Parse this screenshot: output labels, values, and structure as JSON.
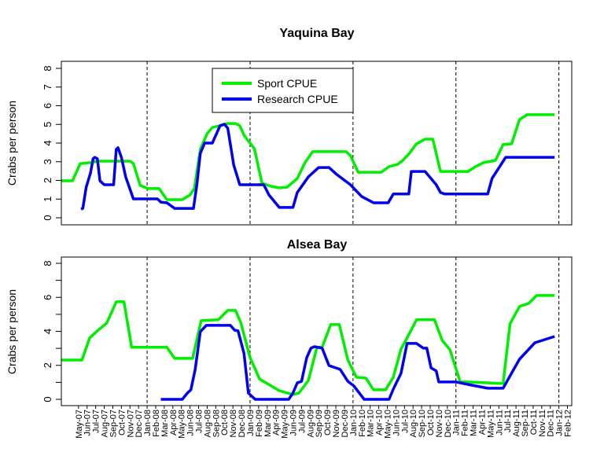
{
  "colors": {
    "sport": "#00ee00",
    "research": "#0000ee"
  },
  "chart_data": [
    {
      "type": "line",
      "title": "Yaquina Bay",
      "xlabel": "",
      "ylabel": "Crabs per person",
      "ylim": [
        0,
        8
      ],
      "yticks": [
        0,
        1,
        2,
        3,
        4,
        5,
        6,
        7,
        8
      ],
      "ytick_labels": [
        "0",
        "1",
        "2",
        "3",
        "4",
        "5",
        "6",
        "7",
        "8"
      ],
      "x_unit": "months since May-07",
      "xlim": [
        -2,
        57.5
      ],
      "vlines_at_months": [
        8,
        20,
        32,
        44,
        56
      ],
      "legend": {
        "placement": "top-center",
        "entries": [
          "Sport CPUE",
          "Research CPUE"
        ]
      },
      "series": [
        {
          "name": "Sport CPUE",
          "color_key": "sport",
          "points": [
            [
              -2,
              1.98
            ],
            [
              -0.7,
              1.98
            ],
            [
              0.2,
              2.9
            ],
            [
              1.4,
              2.95
            ],
            [
              2.3,
              3.03
            ],
            [
              6.0,
              3.03
            ],
            [
              6.4,
              2.9
            ],
            [
              7.2,
              1.73
            ],
            [
              8.1,
              1.56
            ],
            [
              9.4,
              1.56
            ],
            [
              10.3,
              0.97
            ],
            [
              12.1,
              0.97
            ],
            [
              13.0,
              1.22
            ],
            [
              13.5,
              1.56
            ],
            [
              14.2,
              3.66
            ],
            [
              15.0,
              4.51
            ],
            [
              15.6,
              4.84
            ],
            [
              16.5,
              4.93
            ],
            [
              17.4,
              5.05
            ],
            [
              18.3,
              5.05
            ],
            [
              18.8,
              4.93
            ],
            [
              19.3,
              4.42
            ],
            [
              19.7,
              4.17
            ],
            [
              20.5,
              3.7
            ],
            [
              21.4,
              1.85
            ],
            [
              22.5,
              1.68
            ],
            [
              23.4,
              1.6
            ],
            [
              24.3,
              1.64
            ],
            [
              25.5,
              2.1
            ],
            [
              26.4,
              2.95
            ],
            [
              27.3,
              3.54
            ],
            [
              28.4,
              3.54
            ],
            [
              31.2,
              3.54
            ],
            [
              31.7,
              3.33
            ],
            [
              32.6,
              2.44
            ],
            [
              35.3,
              2.44
            ],
            [
              36.2,
              2.74
            ],
            [
              37.2,
              2.86
            ],
            [
              37.8,
              3.07
            ],
            [
              38.5,
              3.41
            ],
            [
              39.4,
              3.96
            ],
            [
              40.4,
              4.21
            ],
            [
              41.3,
              4.21
            ],
            [
              42.2,
              2.48
            ],
            [
              45.4,
              2.48
            ],
            [
              46.3,
              2.74
            ],
            [
              47.2,
              2.95
            ],
            [
              48.6,
              3.07
            ],
            [
              49.5,
              3.92
            ],
            [
              50.5,
              3.96
            ],
            [
              51.4,
              5.26
            ],
            [
              52.3,
              5.52
            ],
            [
              55.5,
              5.52
            ]
          ]
        },
        {
          "name": "Research CPUE",
          "color_key": "research",
          "points": [
            [
              0.3,
              0.46
            ],
            [
              0.5,
              0.5
            ],
            [
              0.9,
              1.64
            ],
            [
              1.4,
              2.4
            ],
            [
              1.7,
              3.16
            ],
            [
              1.9,
              3.24
            ],
            [
              2.2,
              3.16
            ],
            [
              2.5,
              1.98
            ],
            [
              3.0,
              1.77
            ],
            [
              4.1,
              1.77
            ],
            [
              4.4,
              3.66
            ],
            [
              4.6,
              3.75
            ],
            [
              5.0,
              3.24
            ],
            [
              5.5,
              2.19
            ],
            [
              6.4,
              1.01
            ],
            [
              9.2,
              1.01
            ],
            [
              9.6,
              0.84
            ],
            [
              10.3,
              0.8
            ],
            [
              11.2,
              0.5
            ],
            [
              13.4,
              0.5
            ],
            [
              13.8,
              1.77
            ],
            [
              14.2,
              3.45
            ],
            [
              14.7,
              4.0
            ],
            [
              15.6,
              4.0
            ],
            [
              16.5,
              4.93
            ],
            [
              17.0,
              5.01
            ],
            [
              17.4,
              4.8
            ],
            [
              18.1,
              2.82
            ],
            [
              18.8,
              1.77
            ],
            [
              21.6,
              1.77
            ],
            [
              22.2,
              1.22
            ],
            [
              23.4,
              0.55
            ],
            [
              25.0,
              0.55
            ],
            [
              25.5,
              1.35
            ],
            [
              26.8,
              2.19
            ],
            [
              28.0,
              2.69
            ],
            [
              29.2,
              2.69
            ],
            [
              30.1,
              2.32
            ],
            [
              31.7,
              1.77
            ],
            [
              33.0,
              1.14
            ],
            [
              34.4,
              0.8
            ],
            [
              36.1,
              0.8
            ],
            [
              36.7,
              1.27
            ],
            [
              38.5,
              1.27
            ],
            [
              38.8,
              2.48
            ],
            [
              40.4,
              2.48
            ],
            [
              41.7,
              1.77
            ],
            [
              42.2,
              1.35
            ],
            [
              42.7,
              1.27
            ],
            [
              47.7,
              1.27
            ],
            [
              48.2,
              2.1
            ],
            [
              49.8,
              3.24
            ],
            [
              55.5,
              3.24
            ]
          ]
        }
      ]
    },
    {
      "type": "line",
      "title": "Alsea Bay",
      "xlabel": "",
      "ylabel": "Crabs per person",
      "ylim": [
        0,
        8
      ],
      "yticks": [
        0,
        1,
        2,
        3,
        4,
        5,
        6,
        7,
        8
      ],
      "ytick_labels": [
        "0",
        "",
        "2",
        "",
        "4",
        "",
        "6",
        "",
        "8"
      ],
      "x_unit": "months since May-07",
      "xlim": [
        -2,
        57.5
      ],
      "vlines_at_months": [
        8,
        20,
        32,
        44,
        56
      ],
      "xtick_labels": [
        "May-07",
        "Jun-07",
        "Jul-07",
        "Aug-07",
        "Sep-07",
        "Oct-07",
        "Nov-07",
        "Dec-07",
        "Jan-08",
        "Feb-08",
        "Mar-08",
        "Apr-08",
        "May-08",
        "Jun-08",
        "Jul-08",
        "Aug-08",
        "Sep-08",
        "Oct-08",
        "Nov-08",
        "Dec-08",
        "Jan-09",
        "Feb-09",
        "Mar-09",
        "Apr-09",
        "May-09",
        "Jun-09",
        "Jul-09",
        "Aug-09",
        "Sep-09",
        "Oct-09",
        "Nov-09",
        "Dec-09",
        "Jan-10",
        "Feb-10",
        "Mar-10",
        "Apr-10",
        "May-10",
        "Jun-10",
        "Jul-10",
        "Aug-10",
        "Sep-10",
        "Oct-10",
        "Nov-10",
        "Dec-10",
        "Jan-11",
        "Feb-11",
        "Mar-11",
        "Apr-11",
        "May-11",
        "Jun-11",
        "Jul-11",
        "Aug-11",
        "Sep-11",
        "Oct-11",
        "Nov-11",
        "Dec-11",
        "Jan-12",
        "Feb-12"
      ],
      "series": [
        {
          "name": "Sport CPUE",
          "color_key": "sport",
          "points": [
            [
              -2,
              2.31
            ],
            [
              0.4,
              2.31
            ],
            [
              1.3,
              3.61
            ],
            [
              2.2,
              4.03
            ],
            [
              3.3,
              4.49
            ],
            [
              4.4,
              5.74
            ],
            [
              5.3,
              5.74
            ],
            [
              6.2,
              3.06
            ],
            [
              8.0,
              3.06
            ],
            [
              10.3,
              3.06
            ],
            [
              11.2,
              2.41
            ],
            [
              13.3,
              2.41
            ],
            [
              14.3,
              4.63
            ],
            [
              16.3,
              4.68
            ],
            [
              17.4,
              5.23
            ],
            [
              18.3,
              5.23
            ],
            [
              18.9,
              4.54
            ],
            [
              20.0,
              2.45
            ],
            [
              21.1,
              1.2
            ],
            [
              23.4,
              0.51
            ],
            [
              25.0,
              0.28
            ],
            [
              25.7,
              0.37
            ],
            [
              26.8,
              1.11
            ],
            [
              27.8,
              3.06
            ],
            [
              28.4,
              3.06
            ],
            [
              29.4,
              4.4
            ],
            [
              30.4,
              4.4
            ],
            [
              31.4,
              2.31
            ],
            [
              32.4,
              1.3
            ],
            [
              33.5,
              1.25
            ],
            [
              34.4,
              0.56
            ],
            [
              35.8,
              0.56
            ],
            [
              36.7,
              1.3
            ],
            [
              37.6,
              2.96
            ],
            [
              38.3,
              3.61
            ],
            [
              39.4,
              4.68
            ],
            [
              41.5,
              4.68
            ],
            [
              42.4,
              3.47
            ],
            [
              43.3,
              2.92
            ],
            [
              44.5,
              1.02
            ],
            [
              45.4,
              1.02
            ],
            [
              49.5,
              0.93
            ],
            [
              50.3,
              4.44
            ],
            [
              51.4,
              5.46
            ],
            [
              52.5,
              5.65
            ],
            [
              53.4,
              6.11
            ],
            [
              55.5,
              6.11
            ]
          ]
        },
        {
          "name": "Research CPUE",
          "color_key": "research",
          "points": [
            [
              9.6,
              0
            ],
            [
              12.1,
              0
            ],
            [
              12.7,
              0.37
            ],
            [
              13.1,
              0.56
            ],
            [
              13.6,
              1.76
            ],
            [
              14.2,
              3.98
            ],
            [
              14.9,
              4.35
            ],
            [
              17.7,
              4.35
            ],
            [
              18.2,
              4.07
            ],
            [
              18.6,
              4.03
            ],
            [
              19.3,
              2.69
            ],
            [
              19.8,
              0.37
            ],
            [
              20.6,
              0
            ],
            [
              24.5,
              0
            ],
            [
              25.0,
              0.37
            ],
            [
              25.5,
              0.97
            ],
            [
              26.0,
              1.06
            ],
            [
              26.6,
              2.45
            ],
            [
              27.1,
              3.01
            ],
            [
              27.5,
              3.1
            ],
            [
              28.4,
              3.01
            ],
            [
              29.2,
              1.99
            ],
            [
              30.5,
              1.76
            ],
            [
              31.4,
              1.06
            ],
            [
              32.1,
              0.79
            ],
            [
              33.3,
              0
            ],
            [
              36.2,
              0
            ],
            [
              36.7,
              0.6
            ],
            [
              37.6,
              1.53
            ],
            [
              38.3,
              3.29
            ],
            [
              39.4,
              3.29
            ],
            [
              40.2,
              3.01
            ],
            [
              40.6,
              3.01
            ],
            [
              41.1,
              1.85
            ],
            [
              41.7,
              1.67
            ],
            [
              42.0,
              1.02
            ],
            [
              44.0,
              1.02
            ],
            [
              45.9,
              0.83
            ],
            [
              47.7,
              0.65
            ],
            [
              49.5,
              0.65
            ],
            [
              51.4,
              2.36
            ],
            [
              53.2,
              3.33
            ],
            [
              55.5,
              3.7
            ]
          ]
        }
      ]
    }
  ]
}
